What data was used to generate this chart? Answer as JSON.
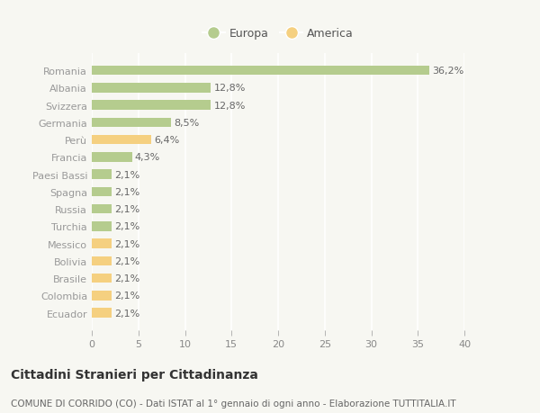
{
  "countries": [
    "Romania",
    "Albania",
    "Svizzera",
    "Germania",
    "Perù",
    "Francia",
    "Paesi Bassi",
    "Spagna",
    "Russia",
    "Turchia",
    "Messico",
    "Bolivia",
    "Brasile",
    "Colombia",
    "Ecuador"
  ],
  "values": [
    36.2,
    12.8,
    12.8,
    8.5,
    6.4,
    4.3,
    2.1,
    2.1,
    2.1,
    2.1,
    2.1,
    2.1,
    2.1,
    2.1,
    2.1
  ],
  "labels": [
    "36,2%",
    "12,8%",
    "12,8%",
    "8,5%",
    "6,4%",
    "4,3%",
    "2,1%",
    "2,1%",
    "2,1%",
    "2,1%",
    "2,1%",
    "2,1%",
    "2,1%",
    "2,1%",
    "2,1%"
  ],
  "continent": [
    "Europa",
    "Europa",
    "Europa",
    "Europa",
    "America",
    "Europa",
    "Europa",
    "Europa",
    "Europa",
    "Europa",
    "America",
    "America",
    "America",
    "America",
    "America"
  ],
  "color_europa": "#b5cc8e",
  "color_america": "#f5d080",
  "bg_color": "#f7f7f2",
  "grid_color": "#ffffff",
  "title": "Cittadini Stranieri per Cittadinanza",
  "subtitle": "COMUNE DI CORRIDO (CO) - Dati ISTAT al 1° gennaio di ogni anno - Elaborazione TUTTITALIA.IT",
  "legend_europa": "Europa",
  "legend_america": "America",
  "xlim": [
    0,
    40
  ],
  "xticks": [
    0,
    5,
    10,
    15,
    20,
    25,
    30,
    35,
    40
  ],
  "bar_height": 0.55,
  "label_fontsize": 8,
  "tick_fontsize": 8,
  "title_fontsize": 10,
  "subtitle_fontsize": 7.5
}
